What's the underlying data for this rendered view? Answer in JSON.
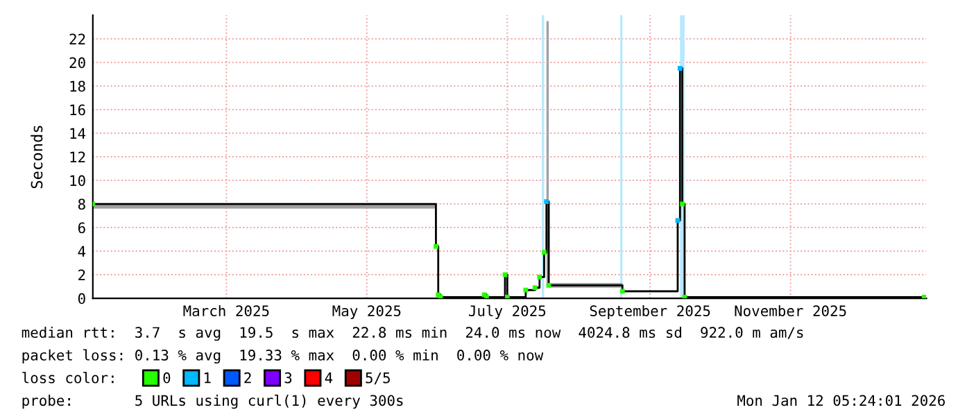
{
  "chart_data": {
    "type": "step",
    "ylabel": "Seconds",
    "xlim": [
      "2025-01-02",
      "2025-12-30"
    ],
    "xticks": [
      {
        "value": "2025-03-01",
        "label": "March 2025"
      },
      {
        "value": "2025-05-01",
        "label": "May 2025"
      },
      {
        "value": "2025-07-01",
        "label": "July 2025"
      },
      {
        "value": "2025-09-01",
        "label": "September 2025"
      },
      {
        "value": "2025-11-01",
        "label": "November 2025"
      }
    ],
    "ylim": [
      0,
      24
    ],
    "yticks": [
      0,
      2,
      4,
      6,
      8,
      10,
      12,
      14,
      16,
      18,
      20,
      22
    ],
    "grid": true,
    "x": [
      "2025-01-02",
      "2025-05-31",
      "2025-06-01",
      "2025-06-02",
      "2025-06-21",
      "2025-06-22",
      "2025-06-30",
      "2025-07-01",
      "2025-07-09",
      "2025-07-13",
      "2025-07-15",
      "2025-07-17",
      "2025-07-18",
      "2025-07-19",
      "2025-08-20",
      "2025-09-13",
      "2025-09-14",
      "2025-09-15",
      "2025-09-16",
      "2025-12-29"
    ],
    "series": [
      {
        "color": "#000000",
        "values": [
          8.0,
          4.4,
          0.3,
          0.1,
          0.3,
          0.1,
          2.0,
          0.1,
          0.7,
          0.9,
          1.8,
          3.9,
          8.2,
          1.1,
          0.6,
          6.6,
          19.5,
          8.0,
          0.1,
          0.1
        ],
        "lower": [
          7.6,
          4.3,
          0.3,
          0.1,
          0.3,
          0.1,
          2.0,
          0.1,
          0.6,
          0.8,
          1.8,
          3.9,
          1.0,
          0.9,
          0.5,
          6.6,
          19.5,
          8.0,
          0.1,
          0.1
        ],
        "upper": [
          8.0,
          4.4,
          0.3,
          0.1,
          0.3,
          0.1,
          2.0,
          0.1,
          0.7,
          0.9,
          1.8,
          3.9,
          23.5,
          1.3,
          0.6,
          6.6,
          19.5,
          8.0,
          0.1,
          0.1
        ]
      },
      {
        "type": "scatter",
        "name": "0",
        "color": "#26ff00",
        "marker": "square",
        "x": [
          "2025-01-02",
          "2025-05-31",
          "2025-06-01",
          "2025-06-02",
          "2025-06-21",
          "2025-06-22",
          "2025-06-30",
          "2025-07-01",
          "2025-07-09",
          "2025-07-13",
          "2025-07-15",
          "2025-07-17",
          "2025-07-19",
          "2025-08-20",
          "2025-09-15",
          "2025-09-16",
          "2025-12-29"
        ],
        "values": [
          8.0,
          4.4,
          0.3,
          0.1,
          0.3,
          0.1,
          2.0,
          0.1,
          0.7,
          0.9,
          1.8,
          3.9,
          1.1,
          0.6,
          8.0,
          0.1,
          0.1
        ]
      },
      {
        "type": "scatter",
        "name": "1",
        "color": "#00b8ff",
        "marker": "square",
        "x": [
          "2025-07-18",
          "2025-09-13",
          "2025-09-14"
        ],
        "values": [
          8.2,
          6.6,
          19.5
        ]
      },
      {
        "type": "scatter",
        "name": "2",
        "color": "#0059ff",
        "marker": "square",
        "values": [
          null,
          null,
          null,
          null,
          null,
          null,
          null,
          null,
          null,
          null,
          null,
          null,
          null,
          null,
          null,
          null,
          null,
          null,
          null,
          null
        ]
      },
      {
        "type": "scatter",
        "name": "3",
        "color": "#7e00ff",
        "marker": "square",
        "values": [
          null,
          null,
          null,
          null,
          null,
          null,
          null,
          null,
          null,
          null,
          null,
          null,
          null,
          null,
          null,
          null,
          null,
          null,
          null,
          null
        ]
      },
      {
        "type": "scatter",
        "name": "4",
        "color": "#ff0000",
        "marker": "square",
        "values": [
          null,
          null,
          null,
          null,
          null,
          null,
          null,
          null,
          null,
          null,
          null,
          null,
          null,
          null,
          null,
          null,
          null,
          null,
          null,
          null
        ]
      },
      {
        "type": "scatter",
        "name": "5/5",
        "color": "#a10000",
        "marker": "square",
        "values": [
          null,
          null,
          null,
          null,
          null,
          null,
          null,
          null,
          null,
          null,
          null,
          null,
          null,
          null,
          null,
          null,
          null,
          null,
          null,
          null
        ]
      }
    ],
    "bands": [
      {
        "axis": "x",
        "from": "2025-07-16",
        "to": "2025-07-17",
        "color": "#b8e8ff"
      },
      {
        "axis": "x",
        "from": "2025-08-19",
        "to": "2025-08-20",
        "color": "#b8e8ff"
      },
      {
        "axis": "x",
        "from": "2025-09-14",
        "to": "2025-09-16",
        "color": "#b8e8ff"
      }
    ],
    "legend": "bottom",
    "legend_title": "loss color:",
    "annotations": [
      "median rtt:  3.7  s avg  19.5  s max  22.8 ms min  24.0 ms now  4024.8 ms sd  922.0 m am/s",
      "packet loss: 0.13 % avg  19.33 % max  0.00 % min  0.00 % now",
      "probe:       5 URLs using curl(1) every 300s",
      "Mon Jan 12 05:24:01 2026"
    ]
  }
}
